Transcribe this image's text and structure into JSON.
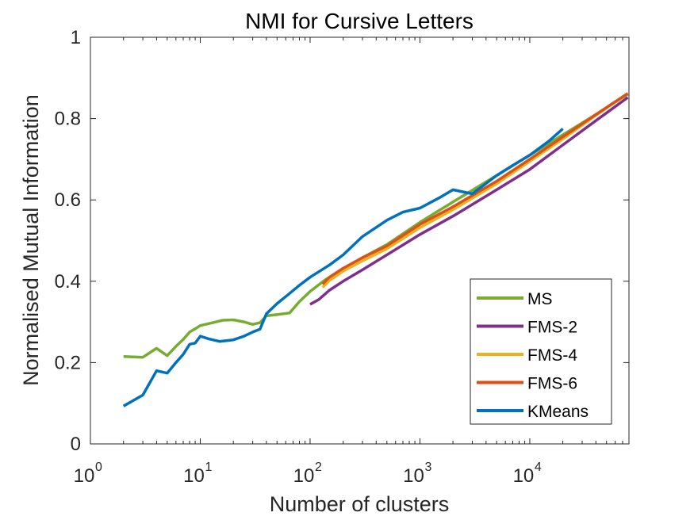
{
  "chart_data": {
    "type": "line",
    "title": "NMI for Cursive Letters",
    "xlabel": "Number of clusters",
    "ylabel": "Normalised Mutual Information",
    "xscale": "log",
    "xlim": [
      1,
      80000
    ],
    "ylim": [
      0,
      1
    ],
    "grid": false,
    "legend_position": "bottom-right",
    "xticks": [
      {
        "value": 1,
        "base": "10",
        "exp": "0"
      },
      {
        "value": 10,
        "base": "10",
        "exp": "1"
      },
      {
        "value": 100,
        "base": "10",
        "exp": "2"
      },
      {
        "value": 1000,
        "base": "10",
        "exp": "3"
      },
      {
        "value": 10000,
        "base": "10",
        "exp": "4"
      }
    ],
    "yticks": [
      {
        "value": 0,
        "label": "0"
      },
      {
        "value": 0.2,
        "label": "0.2"
      },
      {
        "value": 0.4,
        "label": "0.4"
      },
      {
        "value": 0.6,
        "label": "0.6"
      },
      {
        "value": 0.8,
        "label": "0.8"
      },
      {
        "value": 1,
        "label": "1"
      }
    ],
    "series": [
      {
        "name": "MS",
        "color": "#77AC30",
        "x": [
          2,
          3,
          4,
          5,
          6,
          7,
          8,
          9,
          10,
          13,
          16,
          20,
          25,
          30,
          35,
          40,
          50,
          65,
          80,
          100,
          140,
          200,
          300,
          500,
          1000,
          2000,
          5000,
          10000,
          20000,
          40000,
          78000
        ],
        "y": [
          0.215,
          0.213,
          0.235,
          0.217,
          0.24,
          0.257,
          0.275,
          0.283,
          0.291,
          0.298,
          0.304,
          0.305,
          0.3,
          0.294,
          0.298,
          0.315,
          0.318,
          0.322,
          0.35,
          0.375,
          0.405,
          0.43,
          0.458,
          0.49,
          0.545,
          0.595,
          0.66,
          0.71,
          0.76,
          0.81,
          0.86
        ]
      },
      {
        "name": "FMS-2",
        "color": "#7E2F8E",
        "x": [
          100,
          120,
          150,
          200,
          300,
          500,
          1000,
          2000,
          5000,
          10000,
          20000,
          40000,
          78000
        ],
        "y": [
          0.343,
          0.355,
          0.378,
          0.4,
          0.428,
          0.465,
          0.515,
          0.56,
          0.625,
          0.675,
          0.735,
          0.795,
          0.852
        ]
      },
      {
        "name": "FMS-4",
        "color": "#EDB120",
        "x": [
          130,
          150,
          200,
          300,
          500,
          1000,
          2000,
          5000,
          10000,
          20000,
          40000,
          78000
        ],
        "y": [
          0.385,
          0.402,
          0.425,
          0.45,
          0.48,
          0.532,
          0.576,
          0.64,
          0.695,
          0.75,
          0.808,
          0.862
        ]
      },
      {
        "name": "FMS-6",
        "color": "#D95319",
        "x": [
          130,
          150,
          200,
          300,
          500,
          1000,
          2000,
          5000,
          10000,
          20000,
          40000,
          78000
        ],
        "y": [
          0.393,
          0.41,
          0.432,
          0.458,
          0.487,
          0.54,
          0.583,
          0.646,
          0.7,
          0.755,
          0.81,
          0.862
        ]
      },
      {
        "name": "KMeans",
        "color": "#0072BD",
        "x": [
          2,
          3,
          4,
          5,
          6,
          7,
          8,
          9,
          10,
          12,
          15,
          20,
          25,
          30,
          35,
          40,
          50,
          65,
          80,
          100,
          150,
          200,
          300,
          500,
          700,
          1000,
          1500,
          2000,
          3000,
          5000,
          7000,
          10000,
          15000,
          20000
        ],
        "y": [
          0.093,
          0.12,
          0.18,
          0.174,
          0.2,
          0.22,
          0.245,
          0.248,
          0.265,
          0.258,
          0.252,
          0.256,
          0.265,
          0.275,
          0.282,
          0.32,
          0.345,
          0.37,
          0.39,
          0.41,
          0.44,
          0.465,
          0.51,
          0.55,
          0.57,
          0.58,
          0.605,
          0.625,
          0.615,
          0.66,
          0.685,
          0.71,
          0.745,
          0.775
        ]
      }
    ]
  }
}
